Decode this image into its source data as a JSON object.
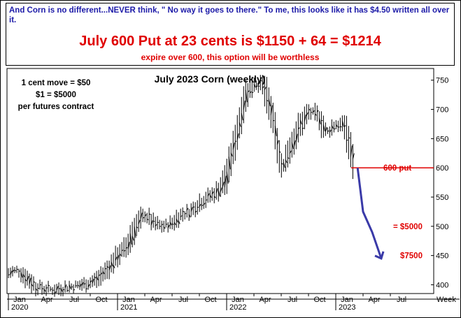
{
  "banner": {
    "line1": "And Corn is no different...NEVER think, \" No way it goes to there.\" To me, this looks like it has $4.50 written all over it.",
    "headline": "July 600 Put at 23 cents is $1150 + 64 = $1214",
    "subline": "expire over 600, this option will be worthless"
  },
  "notes": [
    "1 cent move = $50",
    "$1 = $5000",
    "per futures contract"
  ],
  "chart_data": {
    "type": "bar",
    "title": "July 2023 Corn (weekly)",
    "ylim": [
      385,
      770
    ],
    "y_ticks": [
      400,
      450,
      500,
      550,
      600,
      650,
      700,
      750
    ],
    "x_axis": {
      "month_labels": [
        "Jan",
        "Apr",
        "Jul",
        "Oct",
        "Jan",
        "Apr",
        "Jul",
        "Oct",
        "Jan",
        "Apr",
        "Jul",
        "Oct",
        "Jan",
        "Apr",
        "Jul"
      ],
      "year_labels": [
        "2020",
        "2021",
        "2022",
        "2023"
      ],
      "unit_label": "Week"
    },
    "series": [
      {
        "x": [
          "2020-01",
          "2020-02",
          "2020-03",
          "2020-04",
          "2020-05",
          "2020-06",
          "2020-07",
          "2020-08",
          "2020-09",
          "2020-10",
          "2020-11",
          "2020-12",
          "2021-01",
          "2021-02",
          "2021-03",
          "2021-04",
          "2021-05",
          "2021-06",
          "2021-07",
          "2021-08",
          "2021-09",
          "2021-10",
          "2021-11",
          "2021-12",
          "2022-01",
          "2022-02",
          "2022-03",
          "2022-04",
          "2022-05",
          "2022-06",
          "2022-07",
          "2022-08",
          "2022-09",
          "2022-10",
          "2022-11",
          "2022-12",
          "2023-01",
          "2023-02",
          "2023-03"
        ],
        "y": [
          420,
          425,
          412,
          398,
          393,
          392,
          395,
          397,
          400,
          404,
          412,
          428,
          450,
          465,
          500,
          520,
          505,
          500,
          505,
          520,
          525,
          540,
          550,
          560,
          585,
          650,
          720,
          745,
          740,
          690,
          600,
          635,
          670,
          695,
          690,
          660,
          675,
          670,
          605
        ]
      }
    ],
    "projection": [
      600,
      525,
      490,
      445
    ],
    "annotations": [
      {
        "text": "600 put",
        "level": 600
      },
      {
        "text": "= $5000",
        "level": 500
      },
      {
        "text": "$7500",
        "level": 450
      }
    ],
    "colors": {
      "bars": "#000000",
      "projection": "#3a3aa8",
      "annotation": "#e00000"
    }
  }
}
